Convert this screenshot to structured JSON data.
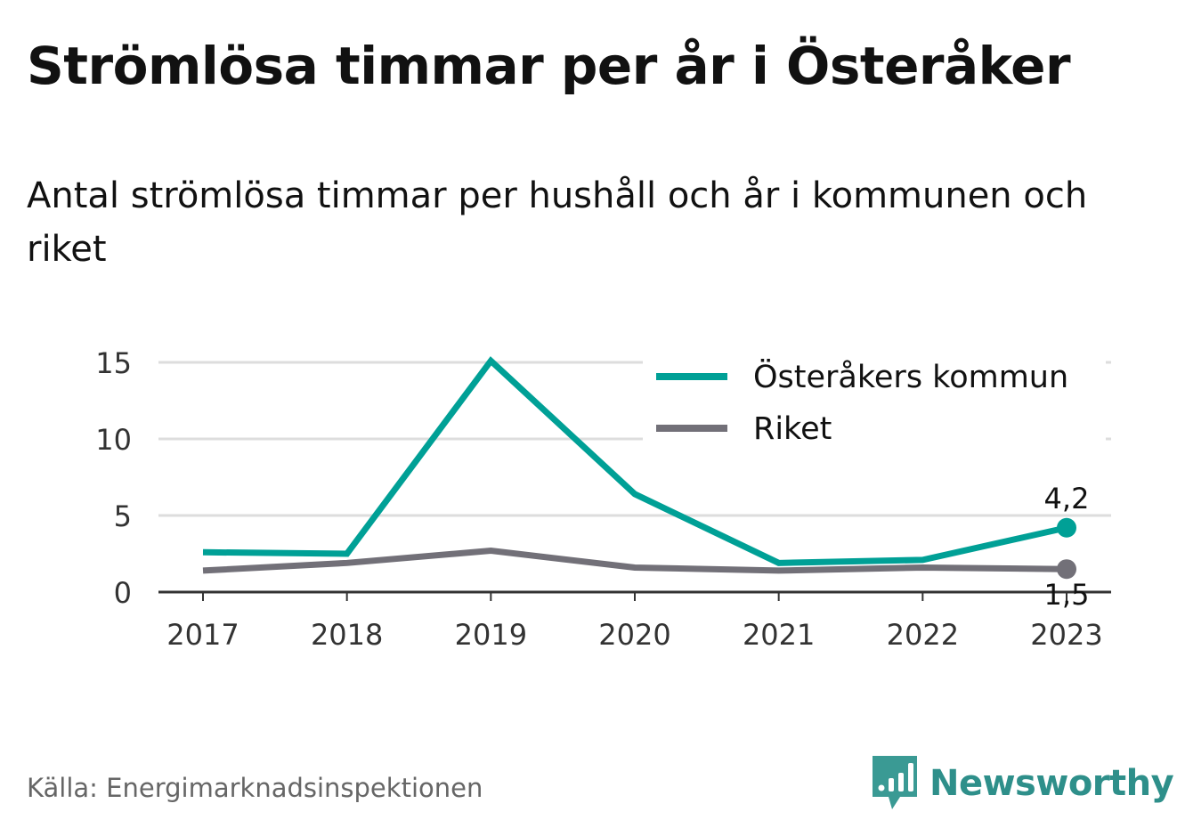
{
  "title": "Strömlösa timmar per år i Österåker",
  "subtitle": "Antal strömlösa timmar per hushåll och år i kommunen och riket",
  "source": "Källa: Energimarknadsinspektionen",
  "brand": {
    "name": "Newsworthy",
    "icon": "newsworthy-logo-icon",
    "color": "#2e8f8a"
  },
  "chart_data": {
    "type": "line",
    "x": [
      "2017",
      "2018",
      "2019",
      "2020",
      "2021",
      "2022",
      "2023"
    ],
    "ylim": [
      0,
      15
    ],
    "yticks": [
      0,
      5,
      10,
      15
    ],
    "grid": true,
    "legend": "top-right",
    "series": [
      {
        "name": "Österåkers kommun",
        "color": "#00a096",
        "values": [
          2.6,
          2.5,
          15.1,
          6.4,
          1.9,
          2.1,
          4.2
        ],
        "end_label": "4,2"
      },
      {
        "name": "Riket",
        "color": "#727078",
        "values": [
          1.4,
          1.9,
          2.7,
          1.6,
          1.4,
          1.6,
          1.5
        ],
        "end_label": "1,5"
      }
    ]
  }
}
